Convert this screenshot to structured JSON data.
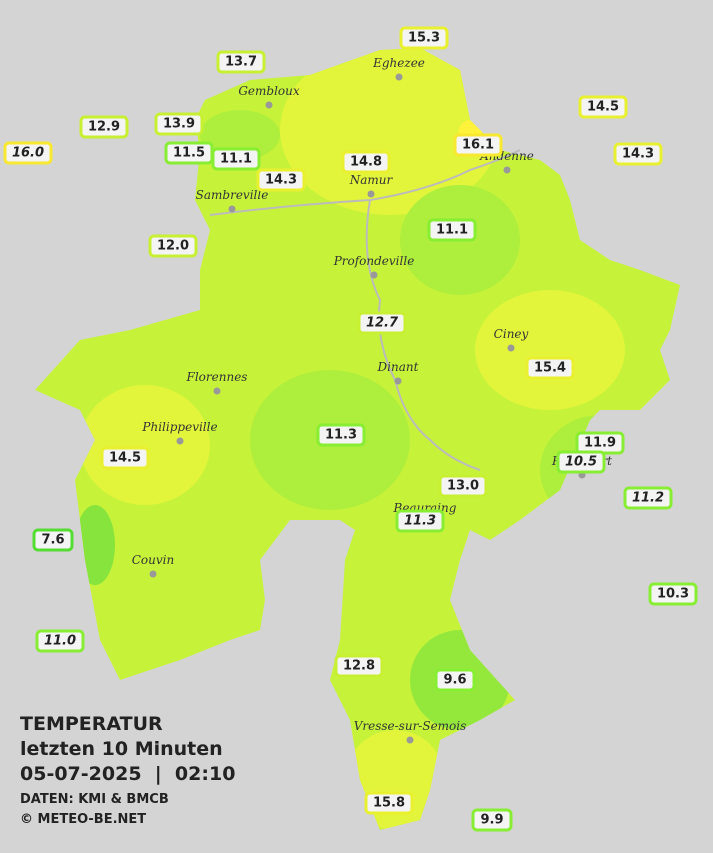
{
  "title": [
    "TEMPERATUR",
    "letzten 10 Minuten",
    "05-07-2025  |  02:10"
  ],
  "credits": [
    "DATEN: KMI & BMCB",
    "© METEO-BE.NET"
  ],
  "towns": [
    "Eghezee",
    "Gembloux",
    "Andenne",
    "Namur",
    "Sambreville",
    "Profondeville",
    "Ciney",
    "Dinant",
    "Florennes",
    "Philippeville",
    "Rochefort",
    "Beauraing",
    "Couvin",
    "Vresse-sur-Semois"
  ],
  "stations": [
    {
      "label": "15.3"
    },
    {
      "label": "13.7"
    },
    {
      "label": "12.9"
    },
    {
      "label": "13.9"
    },
    {
      "label": "16.0",
      "italic": true
    },
    {
      "label": "11.5"
    },
    {
      "label": "11.1"
    },
    {
      "label": "14.3"
    },
    {
      "label": "14.8"
    },
    {
      "label": "16.1"
    },
    {
      "label": "14.5"
    },
    {
      "label": "14.3"
    },
    {
      "label": "12.0"
    },
    {
      "label": "11.1"
    },
    {
      "label": "12.7",
      "italic": true
    },
    {
      "label": "15.4"
    },
    {
      "label": "11.3"
    },
    {
      "label": "11.9"
    },
    {
      "label": "10.5",
      "italic": true
    },
    {
      "label": "14.5"
    },
    {
      "label": "13.0"
    },
    {
      "label": "11.2",
      "italic": true
    },
    {
      "label": "11.3",
      "italic": true
    },
    {
      "label": "7.6"
    },
    {
      "label": "10.3"
    },
    {
      "label": "11.0",
      "italic": true
    },
    {
      "label": "12.8"
    },
    {
      "label": "9.6"
    },
    {
      "label": "15.8"
    },
    {
      "label": "9.9"
    }
  ]
}
